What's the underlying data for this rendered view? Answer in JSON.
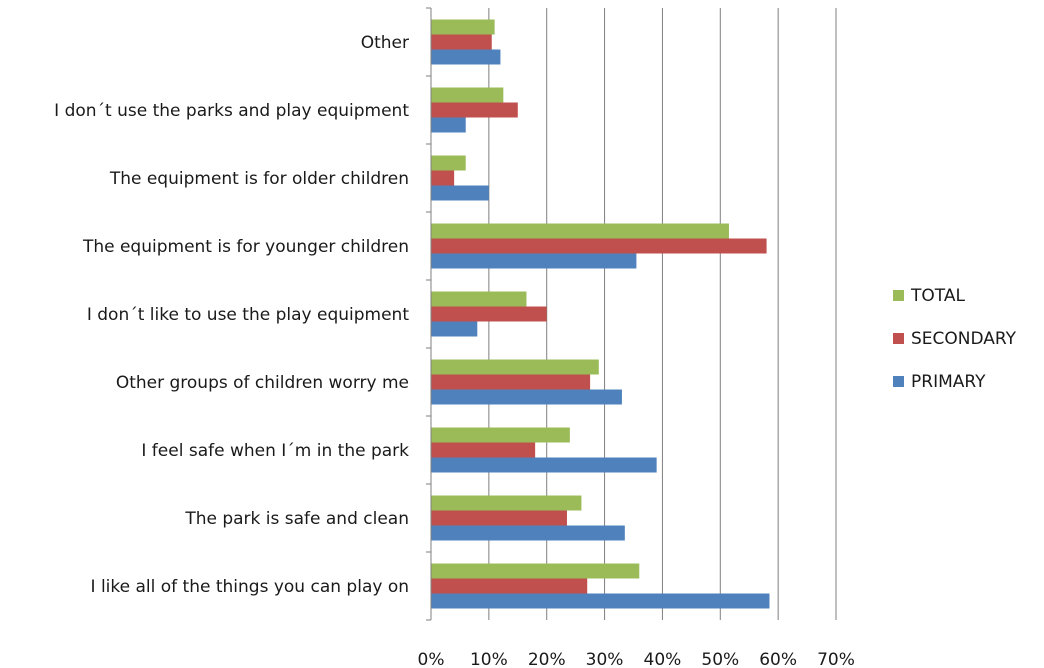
{
  "chart_data": {
    "type": "bar",
    "orientation": "horizontal",
    "title": "",
    "xlabel": "",
    "ylabel": "",
    "xlim": [
      0,
      70
    ],
    "x_ticks": [
      "0%",
      "10%",
      "20%",
      "30%",
      "40%",
      "50%",
      "60%",
      "70%"
    ],
    "grid": "vertical",
    "legend_position": "right",
    "categories": [
      "Other",
      "I don´t use the parks and play equipment",
      "The equipment is for older children",
      "The equipment is for younger children",
      "I don´t like to use the play equipment",
      "Other groups of children worry me",
      "I feel safe when I´m in the park",
      "The park is safe and clean",
      "I like all of the things you can play on"
    ],
    "series": [
      {
        "name": "TOTAL",
        "color": "#9bbb59",
        "values": [
          11,
          12.5,
          6,
          51.5,
          16.5,
          29,
          24,
          26,
          36
        ]
      },
      {
        "name": "SECONDARY",
        "color": "#c0504d",
        "values": [
          10.5,
          15,
          4,
          58,
          20,
          27.5,
          18,
          23.5,
          27
        ]
      },
      {
        "name": "PRIMARY",
        "color": "#4f81bd",
        "values": [
          12,
          6,
          10,
          35.5,
          8,
          33,
          39,
          33.5,
          58.5
        ]
      }
    ]
  }
}
